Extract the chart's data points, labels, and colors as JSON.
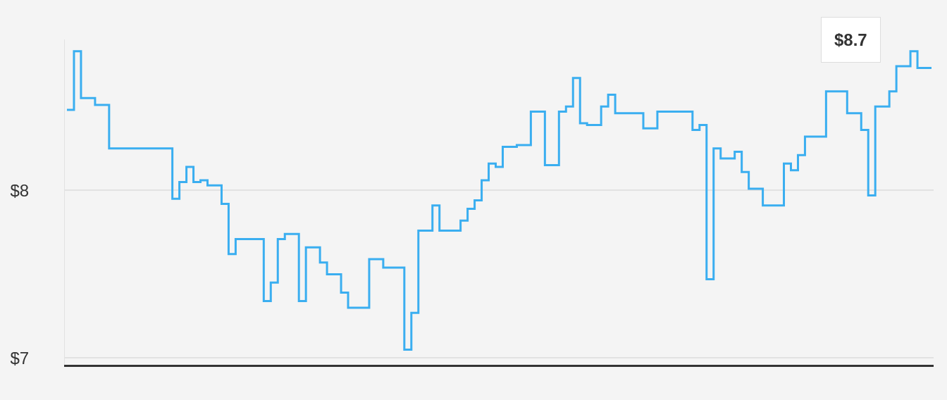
{
  "chart_data": {
    "type": "step",
    "categories": [
      null,
      null,
      null,
      null,
      null,
      null,
      null,
      null,
      null,
      null,
      null,
      null,
      null,
      null,
      null,
      null,
      null,
      null,
      null,
      null,
      null,
      null,
      null,
      null,
      null,
      null,
      null,
      null,
      null,
      null,
      null,
      null,
      null,
      null,
      null,
      null,
      null,
      null,
      null,
      null,
      null,
      null,
      null,
      null,
      null,
      null,
      null,
      null,
      null,
      null,
      null,
      null,
      null,
      null,
      null,
      null,
      null,
      null,
      null,
      null,
      null,
      null,
      null,
      null,
      null,
      null,
      null,
      null,
      null,
      null,
      null,
      null,
      null,
      null,
      null,
      null,
      null,
      null,
      null,
      null,
      null,
      null,
      null,
      null,
      null,
      null,
      null,
      null,
      null,
      null,
      null,
      null,
      null,
      null,
      null,
      null,
      null,
      null,
      null,
      null,
      null,
      null,
      null,
      null,
      null,
      null,
      null,
      null,
      null,
      null,
      null,
      null,
      null,
      null,
      null,
      null,
      null,
      null,
      null,
      null,
      null,
      null,
      null,
      null
    ],
    "series": [
      {
        "color": "#3aaef0",
        "values": [
          8.48,
          8.83,
          8.55,
          8.55,
          8.51,
          8.51,
          8.25,
          8.25,
          8.25,
          8.25,
          8.25,
          8.25,
          8.25,
          8.25,
          8.25,
          7.95,
          8.05,
          8.14,
          8.05,
          8.06,
          8.03,
          8.03,
          7.92,
          7.62,
          7.71,
          7.71,
          7.71,
          7.71,
          7.34,
          7.45,
          7.71,
          7.74,
          7.74,
          7.34,
          7.66,
          7.66,
          7.57,
          7.5,
          7.5,
          7.39,
          7.3,
          7.3,
          7.3,
          7.59,
          7.59,
          7.54,
          7.54,
          7.54,
          7.05,
          7.27,
          7.76,
          7.76,
          7.91,
          7.76,
          7.76,
          7.76,
          7.82,
          7.89,
          7.94,
          8.06,
          8.16,
          8.14,
          8.26,
          8.26,
          8.27,
          8.27,
          8.47,
          8.47,
          8.15,
          8.15,
          8.47,
          8.5,
          8.67,
          8.4,
          8.39,
          8.39,
          8.5,
          8.57,
          8.46,
          8.46,
          8.46,
          8.46,
          8.37,
          8.37,
          8.47,
          8.47,
          8.47,
          8.47,
          8.47,
          8.36,
          8.39,
          7.47,
          8.25,
          8.19,
          8.19,
          8.23,
          8.11,
          8.01,
          8.01,
          7.91,
          7.91,
          7.91,
          8.16,
          8.12,
          8.21,
          8.32,
          8.32,
          8.32,
          8.59,
          8.59,
          8.59,
          8.46,
          8.46,
          8.36,
          7.97,
          8.5,
          8.5,
          8.59,
          8.74,
          8.74,
          8.83,
          8.73,
          8.73,
          8.73
        ]
      }
    ],
    "ylim": [
      6.96,
      8.9
    ],
    "yticks": [
      {
        "value": 7,
        "label": "$7"
      },
      {
        "value": 8,
        "label": "$8"
      }
    ],
    "grid": "y",
    "legend": false,
    "tick_labels": "y",
    "annotations": [
      "$8.7"
    ]
  }
}
